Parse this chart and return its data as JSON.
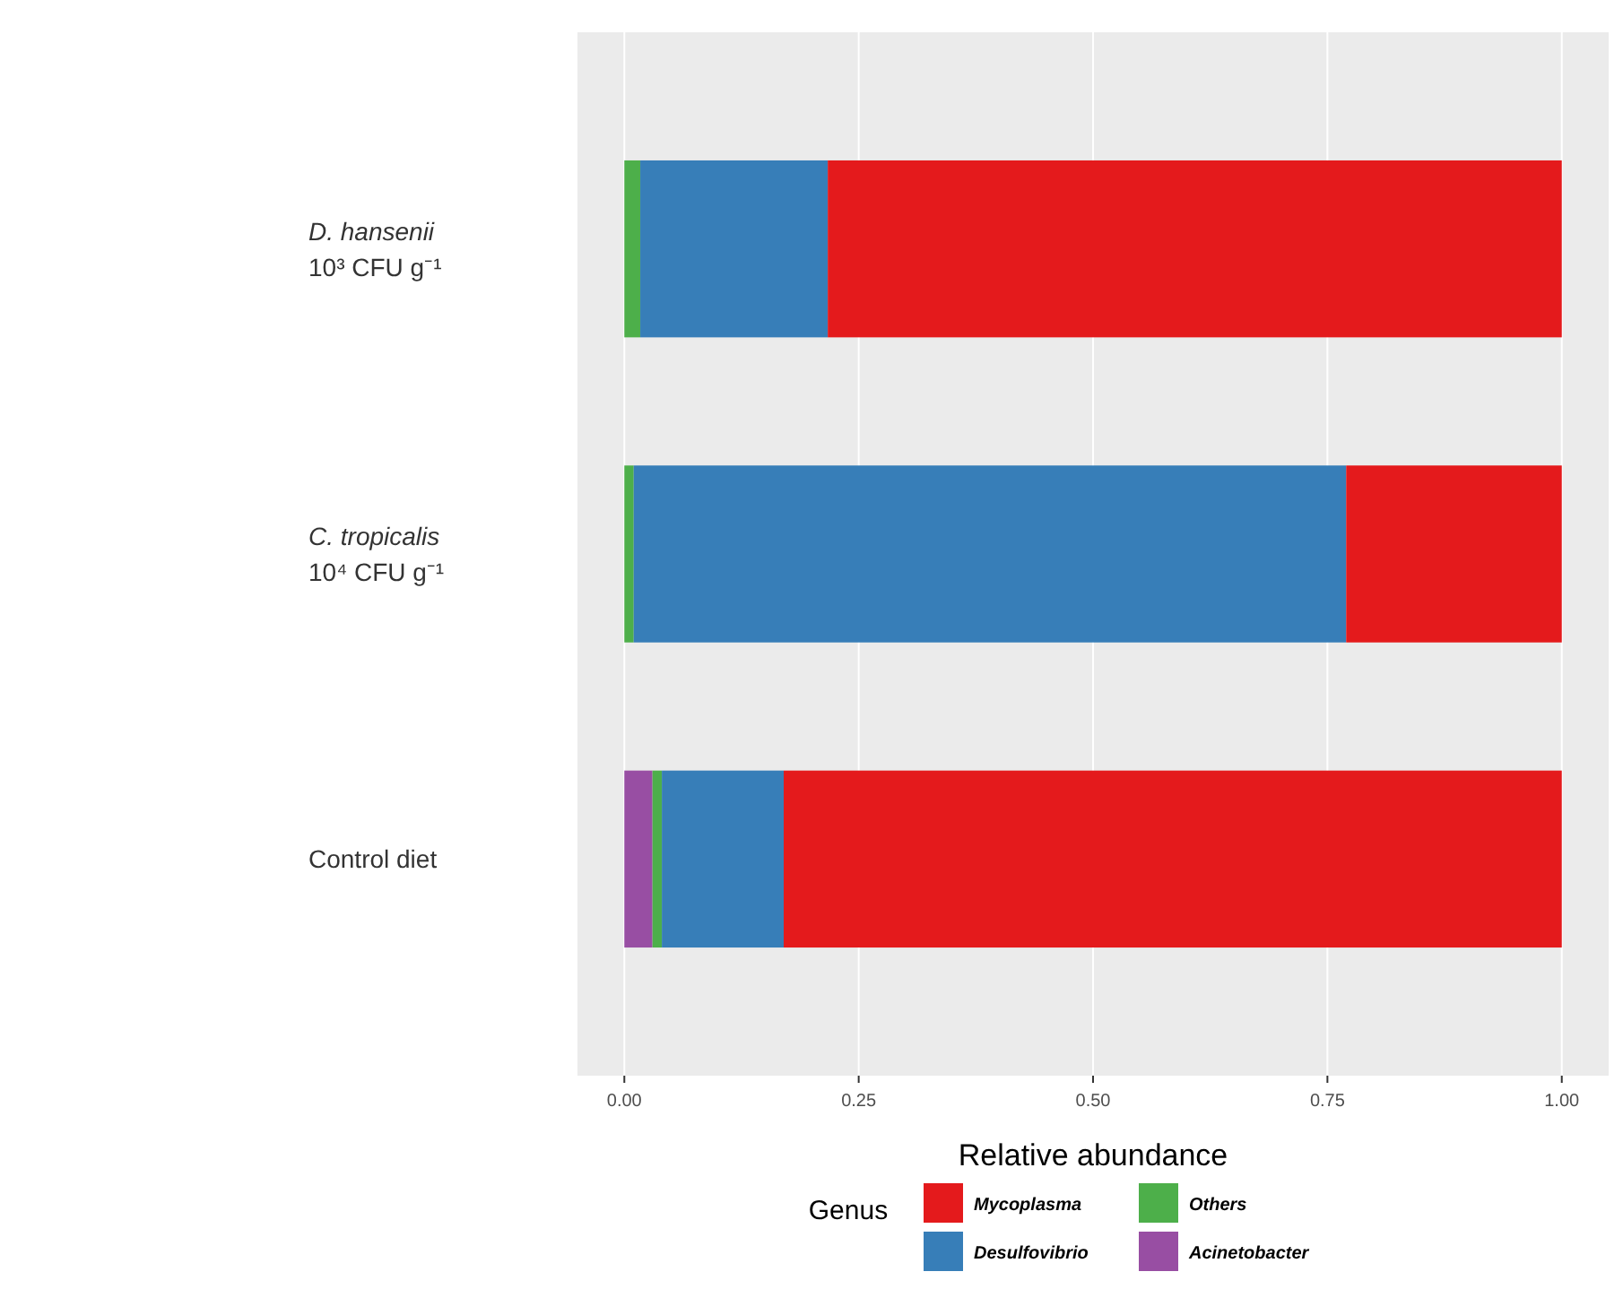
{
  "chart_data": {
    "type": "bar",
    "orientation": "horizontal",
    "stacked": true,
    "categories": [
      "D. hansenii\n10³ CFU g⁻¹",
      "C. tropicalis\n10⁴ CFU g⁻¹",
      "Control diet"
    ],
    "series": [
      {
        "name": "Acinetobacter",
        "color": "#984ea3",
        "values": [
          0,
          0,
          0.03
        ]
      },
      {
        "name": "Others",
        "color": "#4daf4a",
        "values": [
          0.017,
          0.01,
          0.01
        ]
      },
      {
        "name": "Desulfovibrio",
        "color": "#377eb8",
        "values": [
          0.2,
          0.76,
          0.13
        ]
      },
      {
        "name": "Mycoplasma",
        "color": "#e41a1c",
        "values": [
          0.783,
          0.23,
          0.83
        ]
      }
    ],
    "xlim": [
      -0.05,
      1.05
    ],
    "xticks": [
      {
        "value": 0,
        "label": "0.00"
      },
      {
        "value": 0.25,
        "label": "0.25"
      },
      {
        "value": 0.5,
        "label": "0.50"
      },
      {
        "value": 0.75,
        "label": "0.75"
      },
      {
        "value": 1,
        "label": "1.00"
      }
    ],
    "xlabel": "Relative abundance",
    "legend_title": "Genus",
    "legend": "bottom",
    "grid": "x"
  }
}
